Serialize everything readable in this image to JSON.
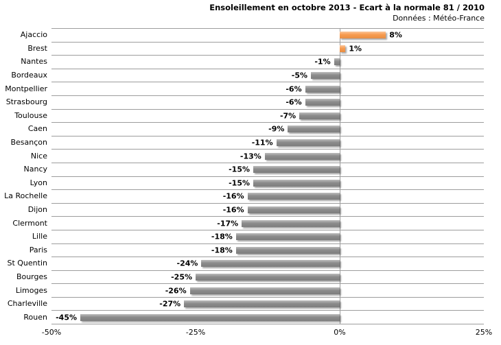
{
  "colors": {
    "positive_bar": "#F79646",
    "negative_bar": "#858585",
    "gridline": "#9C9C9C",
    "text": "#000000"
  },
  "chart_data": {
    "type": "bar",
    "orientation": "horizontal",
    "title": "Ensoleillement en octobre 2013 - Ecart à la normale 81 / 2010",
    "subtitle": "Données : Météo-France",
    "categories": [
      "Ajaccio",
      "Brest",
      "Nantes",
      "Bordeaux",
      "Montpellier",
      "Strasbourg",
      "Toulouse",
      "Caen",
      "Besançon",
      "Nice",
      "Nancy",
      "Lyon",
      "La Rochelle",
      "Dijon",
      "Clermont",
      "Lille",
      "Paris",
      "St Quentin",
      "Bourges",
      "Limoges",
      "Charleville",
      "Rouen"
    ],
    "values": [
      8,
      1,
      -1,
      -5,
      -6,
      -6,
      -7,
      -9,
      -11,
      -13,
      -15,
      -15,
      -16,
      -16,
      -17,
      -18,
      -18,
      -24,
      -25,
      -26,
      -27,
      -45
    ],
    "value_labels": [
      "8%",
      "1%",
      "-1%",
      "-5%",
      "-6%",
      "-6%",
      "-7%",
      "-9%",
      "-11%",
      "-13%",
      "-15%",
      "-15%",
      "-16%",
      "-16%",
      "-17%",
      "-18%",
      "-18%",
      "-24%",
      "-25%",
      "-26%",
      "-27%",
      "-45%"
    ],
    "xlabel": "",
    "ylabel": "",
    "xlim": [
      -50,
      25
    ],
    "x_ticks": [
      "-50%",
      "-25%",
      "0%",
      "25%"
    ],
    "x_tick_values": [
      -50,
      -25,
      0,
      25
    ],
    "grid": "category separator lines + zero axis line",
    "legend": "none",
    "data_labels": "outside end"
  }
}
